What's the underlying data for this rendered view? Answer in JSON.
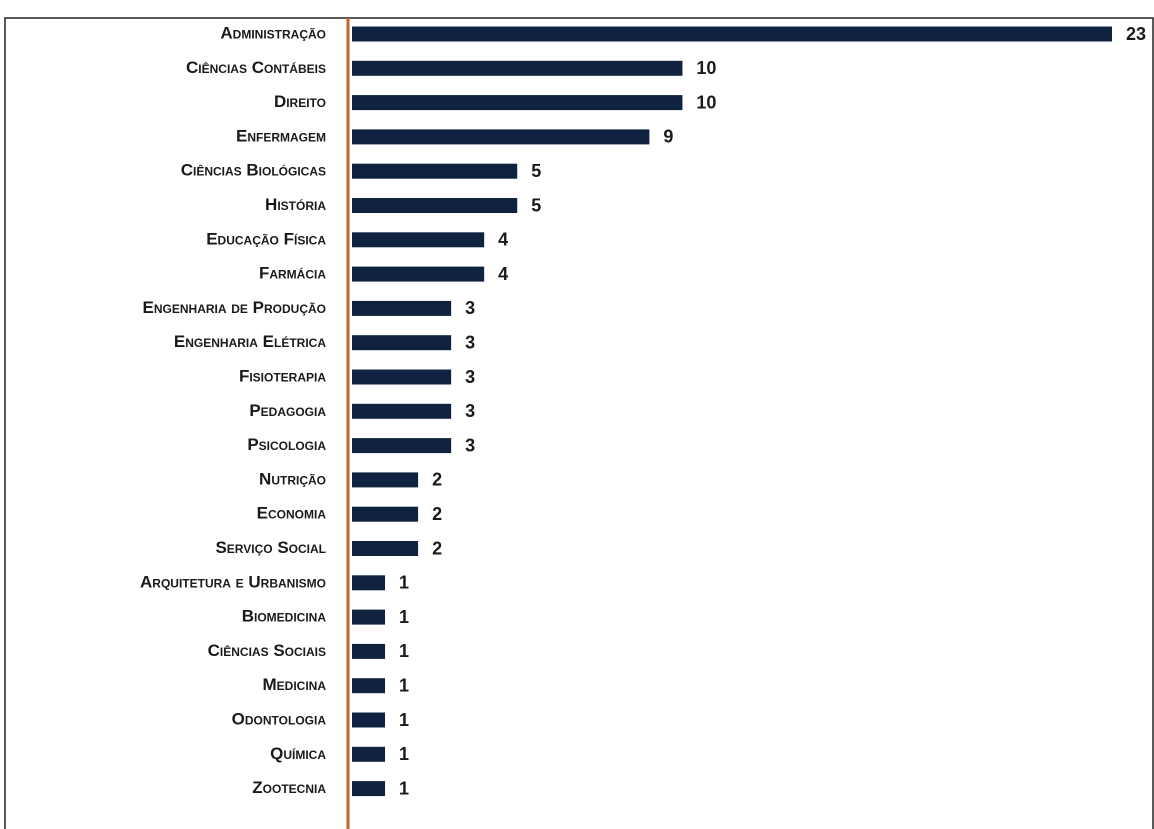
{
  "chart_data": {
    "type": "bar",
    "orientation": "horizontal",
    "categories": [
      "Administração",
      "Ciências Contábeis",
      "Direito",
      "Enfermagem",
      "Ciências Biológicas",
      "História",
      "Educação Física",
      "Farmácia",
      "Engenharia de Produção",
      "Engenharia Elétrica",
      "Fisioterapia",
      "Pedagogia",
      "Psicologia",
      "Nutrição",
      "Economia",
      "Serviço Social",
      "Arquitetura e Urbanismo",
      "Biomedicina",
      "Ciências Sociais",
      "Medicina",
      "Odontologia",
      "Química",
      "Zootecnia"
    ],
    "values": [
      23,
      10,
      10,
      9,
      5,
      5,
      4,
      4,
      3,
      3,
      3,
      3,
      3,
      2,
      2,
      2,
      1,
      1,
      1,
      1,
      1,
      1,
      1
    ],
    "color": "#0f2340",
    "axis_color": "#c4622d"
  }
}
